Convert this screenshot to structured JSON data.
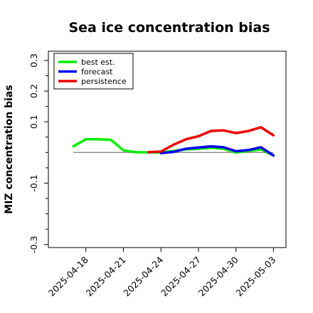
{
  "chart_data": {
    "type": "line",
    "title": "Sea ice concentration bias",
    "xlabel": "",
    "ylabel": "MIZ concentration bias",
    "ylim": [
      -0.31,
      0.33
    ],
    "y_ticks": [
      "0.3",
      "0.2",
      "0.1",
      "-0.1",
      "-0.3"
    ],
    "y_tick_values": [
      0.3,
      0.2,
      0.1,
      -0.1,
      -0.3
    ],
    "x_ticks": [
      "2025-04-18",
      "2025-04-21",
      "2025-04-24",
      "2025-04-27",
      "2025-04-30",
      "2025-05-03"
    ],
    "highlighted_x_tick": "2025-04-24",
    "highlight_color": "#228b22",
    "xlim": [
      "2025-04-15",
      "2025-05-04"
    ],
    "reference_line": 0,
    "grid": false,
    "legend_position": "top-left",
    "series": [
      {
        "name": "best est.",
        "color": "#00ee00",
        "x": [
          "2025-04-17",
          "2025-04-18",
          "2025-04-19",
          "2025-04-20",
          "2025-04-21",
          "2025-04-22",
          "2025-04-23",
          "2025-04-24",
          "2025-04-25",
          "2025-04-26",
          "2025-04-27",
          "2025-04-28",
          "2025-04-29",
          "2025-04-30",
          "2025-05-01",
          "2025-05-02",
          "2025-05-03"
        ],
        "values": [
          0.02,
          0.043,
          0.043,
          0.041,
          0.007,
          0.001,
          0.0,
          0.0,
          0.005,
          0.01,
          0.012,
          0.015,
          0.012,
          0.0,
          0.005,
          0.01,
          -0.01
        ]
      },
      {
        "name": "forecast",
        "color": "#0000ee",
        "x": [
          "2025-04-24",
          "2025-04-25",
          "2025-04-26",
          "2025-04-27",
          "2025-04-28",
          "2025-04-29",
          "2025-04-30",
          "2025-05-01",
          "2025-05-02",
          "2025-05-03"
        ],
        "values": [
          -0.002,
          0.002,
          0.012,
          0.016,
          0.02,
          0.017,
          0.004,
          0.008,
          0.017,
          -0.01
        ]
      },
      {
        "name": "persistence",
        "color": "#ee0000",
        "x": [
          "2025-04-23",
          "2025-04-24",
          "2025-04-25",
          "2025-04-26",
          "2025-04-27",
          "2025-04-28",
          "2025-04-29",
          "2025-04-30",
          "2025-05-01",
          "2025-05-02",
          "2025-05-03"
        ],
        "values": [
          0.001,
          0.003,
          0.025,
          0.043,
          0.053,
          0.07,
          0.072,
          0.063,
          0.07,
          0.082,
          0.056
        ]
      }
    ]
  }
}
